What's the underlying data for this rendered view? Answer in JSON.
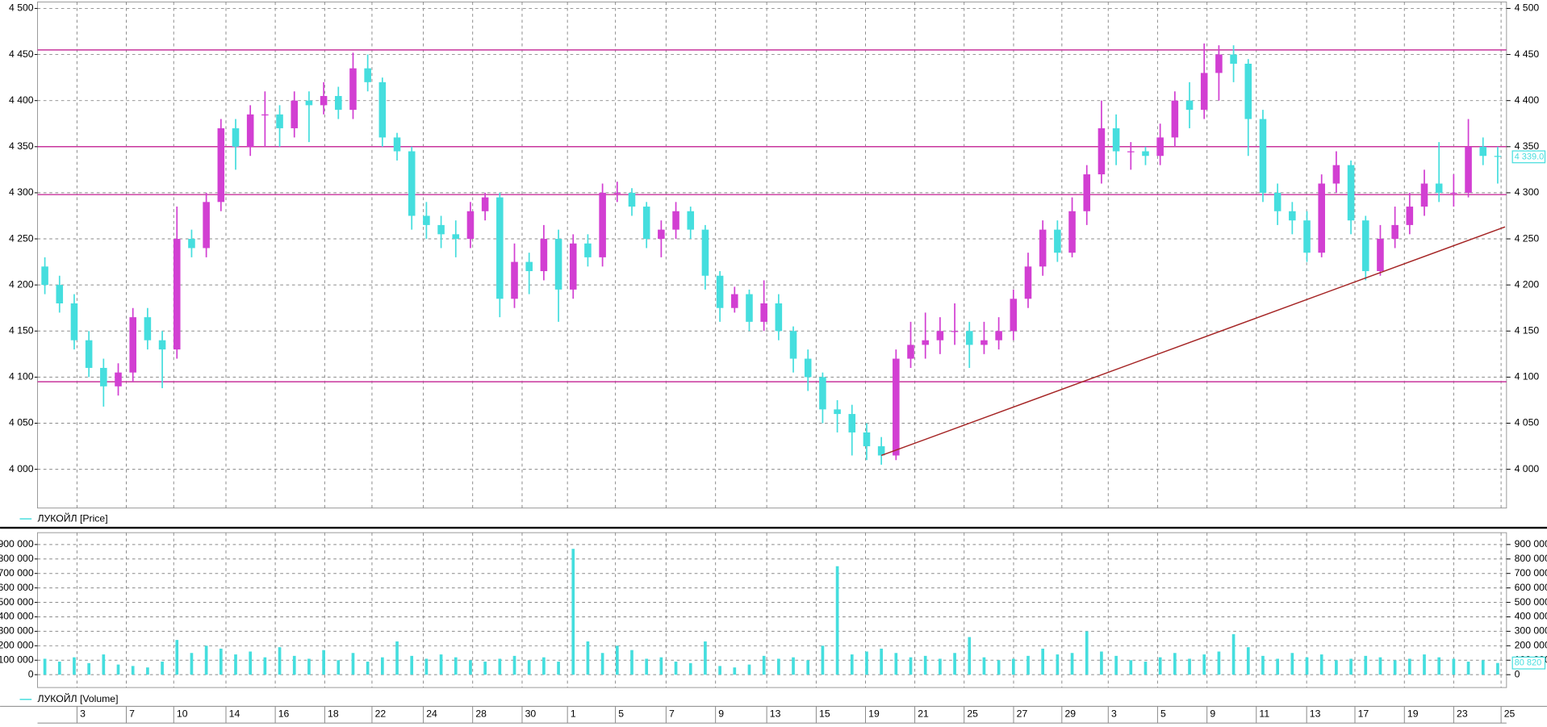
{
  "chart_data": [
    {
      "type": "candlestick",
      "name": "ЛУКОЙЛ [Price]",
      "up_color": "#d23fd2",
      "down_color": "#45dede",
      "x": [
        0,
        1,
        2,
        3,
        4,
        5,
        6,
        7,
        8,
        9,
        10,
        11,
        12,
        13,
        14,
        15,
        16,
        17,
        18,
        19,
        20,
        21,
        22,
        23,
        24,
        25,
        26,
        27,
        28,
        29,
        30,
        31,
        32,
        33,
        34,
        35,
        36,
        37,
        38,
        39,
        40,
        41,
        42,
        43,
        44,
        45,
        46,
        47,
        48,
        49,
        50,
        51,
        52,
        53,
        54,
        55,
        56,
        57,
        58,
        59,
        60,
        61,
        62,
        63,
        64,
        65,
        66,
        67,
        68,
        69,
        70,
        71,
        72,
        73,
        74,
        75,
        76,
        77,
        78,
        79,
        80,
        81,
        82,
        83,
        84,
        85,
        86,
        87,
        88,
        89,
        90,
        91,
        92,
        93,
        94,
        95,
        96,
        97,
        98,
        99
      ],
      "open": [
        4220,
        4200,
        4180,
        4140,
        4110,
        4090,
        4105,
        4165,
        4140,
        4130,
        4250,
        4240,
        4290,
        4370,
        4350,
        4385,
        4385,
        4370,
        4400,
        4395,
        4405,
        4390,
        4435,
        4420,
        4360,
        4345,
        4275,
        4265,
        4255,
        4250,
        4280,
        4295,
        4185,
        4225,
        4215,
        4250,
        4195,
        4245,
        4230,
        4300,
        4300,
        4285,
        4250,
        4260,
        4280,
        4260,
        4210,
        4175,
        4190,
        4160,
        4180,
        4150,
        4120,
        4100,
        4065,
        4060,
        4040,
        4025,
        4015,
        4120,
        4135,
        4140,
        4150,
        4150,
        4135,
        4140,
        4150,
        4185,
        4220,
        4260,
        4235,
        4280,
        4320,
        4370,
        4345,
        4345,
        4340,
        4360,
        4400,
        4390,
        4430,
        4450,
        4440,
        4380,
        4300,
        4280,
        4270,
        4235,
        4310,
        4330,
        4270,
        4215,
        4250,
        4265,
        4285,
        4310,
        4300,
        4300,
        4350,
        4340
      ],
      "high": [
        4230,
        4210,
        4190,
        4150,
        4120,
        4115,
        4175,
        4175,
        4150,
        4285,
        4260,
        4300,
        4380,
        4380,
        4395,
        4410,
        4395,
        4410,
        4410,
        4420,
        4415,
        4452,
        4450,
        4425,
        4365,
        4350,
        4290,
        4275,
        4270,
        4290,
        4300,
        4300,
        4245,
        4235,
        4265,
        4260,
        4255,
        4255,
        4310,
        4312,
        4305,
        4290,
        4270,
        4290,
        4285,
        4265,
        4215,
        4198,
        4195,
        4205,
        4190,
        4155,
        4130,
        4105,
        4075,
        4070,
        4050,
        4035,
        4130,
        4160,
        4170,
        4165,
        4180,
        4160,
        4160,
        4165,
        4195,
        4235,
        4270,
        4270,
        4295,
        4330,
        4400,
        4385,
        4355,
        4350,
        4375,
        4410,
        4420,
        4462,
        4460,
        4460,
        4445,
        4390,
        4310,
        4290,
        4280,
        4320,
        4345,
        4335,
        4275,
        4265,
        4285,
        4300,
        4325,
        4355,
        4320,
        4380,
        4360,
        4350
      ],
      "low": [
        4190,
        4170,
        4130,
        4100,
        4068,
        4080,
        4095,
        4130,
        4088,
        4120,
        4230,
        4230,
        4280,
        4325,
        4340,
        4350,
        4350,
        4360,
        4355,
        4385,
        4380,
        4380,
        4410,
        4350,
        4335,
        4260,
        4250,
        4240,
        4230,
        4240,
        4270,
        4165,
        4175,
        4190,
        4205,
        4160,
        4185,
        4220,
        4220,
        4290,
        4275,
        4240,
        4230,
        4250,
        4250,
        4195,
        4160,
        4170,
        4150,
        4150,
        4140,
        4105,
        4085,
        4050,
        4040,
        4015,
        4010,
        4005,
        4010,
        4110,
        4120,
        4125,
        4135,
        4110,
        4125,
        4130,
        4140,
        4175,
        4210,
        4225,
        4230,
        4265,
        4310,
        4330,
        4325,
        4330,
        4330,
        4350,
        4370,
        4380,
        4400,
        4420,
        4340,
        4290,
        4265,
        4255,
        4225,
        4230,
        4300,
        4255,
        4205,
        4210,
        4240,
        4255,
        4275,
        4290,
        4285,
        4295,
        4330,
        4310
      ],
      "close": [
        4200,
        4180,
        4140,
        4110,
        4090,
        4105,
        4165,
        4140,
        4130,
        4250,
        4240,
        4290,
        4370,
        4350,
        4385,
        4385,
        4370,
        4400,
        4395,
        4405,
        4390,
        4435,
        4420,
        4360,
        4345,
        4275,
        4265,
        4255,
        4250,
        4280,
        4295,
        4185,
        4225,
        4215,
        4250,
        4195,
        4245,
        4230,
        4300,
        4300,
        4285,
        4250,
        4260,
        4280,
        4260,
        4210,
        4175,
        4190,
        4160,
        4180,
        4150,
        4120,
        4100,
        4065,
        4060,
        4040,
        4025,
        4015,
        4120,
        4135,
        4140,
        4150,
        4150,
        4135,
        4140,
        4150,
        4185,
        4220,
        4260,
        4235,
        4280,
        4320,
        4370,
        4345,
        4345,
        4340,
        4360,
        4400,
        4390,
        4430,
        4450,
        4440,
        4380,
        4300,
        4280,
        4270,
        4235,
        4310,
        4330,
        4270,
        4215,
        4250,
        4265,
        4285,
        4310,
        4300,
        4300,
        4350,
        4340,
        4339
      ],
      "xlim": [
        -0.5,
        99.6
      ],
      "ylim": [
        3958,
        4507
      ],
      "yticks": [
        {
          "value": 4000,
          "label": "4 000"
        },
        {
          "value": 4050,
          "label": "4 050"
        },
        {
          "value": 4100,
          "label": "4 100"
        },
        {
          "value": 4150,
          "label": "4 150"
        },
        {
          "value": 4200,
          "label": "4 200"
        },
        {
          "value": 4250,
          "label": "4 250"
        },
        {
          "value": 4300,
          "label": "4 300"
        },
        {
          "value": 4350,
          "label": "4 350"
        },
        {
          "value": 4400,
          "label": "4 400"
        },
        {
          "value": 4450,
          "label": "4 450"
        },
        {
          "value": 4500,
          "label": "4 500"
        }
      ],
      "grid": true,
      "levels": [
        4455,
        4350,
        4298,
        4095
      ],
      "level_color": "#c8359c",
      "trend": {
        "x": [
          57,
          99.5
        ],
        "y": [
          4015,
          4263
        ],
        "color": "#a52525"
      },
      "last_value": {
        "value": 4339,
        "label": "4 339.0"
      }
    },
    {
      "type": "bar",
      "name": "ЛУКОЙЛ [Volume]",
      "color": "#45dede",
      "x": [
        0,
        1,
        2,
        3,
        4,
        5,
        6,
        7,
        8,
        9,
        10,
        11,
        12,
        13,
        14,
        15,
        16,
        17,
        18,
        19,
        20,
        21,
        22,
        23,
        24,
        25,
        26,
        27,
        28,
        29,
        30,
        31,
        32,
        33,
        34,
        35,
        36,
        37,
        38,
        39,
        40,
        41,
        42,
        43,
        44,
        45,
        46,
        47,
        48,
        49,
        50,
        51,
        52,
        53,
        54,
        55,
        56,
        57,
        58,
        59,
        60,
        61,
        62,
        63,
        64,
        65,
        66,
        67,
        68,
        69,
        70,
        71,
        72,
        73,
        74,
        75,
        76,
        77,
        78,
        79,
        80,
        81,
        82,
        83,
        84,
        85,
        86,
        87,
        88,
        89,
        90,
        91,
        92,
        93,
        94,
        95,
        96,
        97,
        98,
        99
      ],
      "values": [
        110000,
        90000,
        120000,
        80000,
        140000,
        70000,
        60000,
        50000,
        90000,
        240000,
        150000,
        200000,
        180000,
        140000,
        160000,
        120000,
        190000,
        130000,
        110000,
        170000,
        100000,
        150000,
        90000,
        120000,
        230000,
        130000,
        110000,
        140000,
        120000,
        100000,
        90000,
        110000,
        130000,
        100000,
        120000,
        90000,
        870000,
        230000,
        150000,
        200000,
        170000,
        110000,
        120000,
        90000,
        80000,
        230000,
        60000,
        50000,
        70000,
        130000,
        110000,
        120000,
        100000,
        200000,
        750000,
        140000,
        160000,
        180000,
        150000,
        120000,
        130000,
        110000,
        150000,
        260000,
        120000,
        100000,
        110000,
        130000,
        180000,
        140000,
        150000,
        300000,
        160000,
        130000,
        100000,
        90000,
        120000,
        150000,
        110000,
        140000,
        160000,
        280000,
        190000,
        130000,
        110000,
        150000,
        120000,
        140000,
        100000,
        110000,
        130000,
        120000,
        100000,
        110000,
        140000,
        120000,
        110000,
        90000,
        100000,
        80820
      ],
      "xlim": [
        -0.5,
        99.6
      ],
      "ylim": [
        -89000,
        982000
      ],
      "yticks": [
        0,
        {
          "value": 100000,
          "label": "100 000"
        },
        {
          "value": 200000,
          "label": "200 000"
        },
        {
          "value": 300000,
          "label": "300 000"
        },
        {
          "value": 400000,
          "label": "400 000"
        },
        {
          "value": 500000,
          "label": "500 000"
        },
        {
          "value": 600000,
          "label": "600 000"
        },
        {
          "value": 700000,
          "label": "700 000"
        },
        {
          "value": 800000,
          "label": "800 000"
        },
        {
          "value": 900000,
          "label": "900 000"
        }
      ],
      "grid": true,
      "xticks": [
        {
          "value": 2.19,
          "label": "3"
        },
        {
          "value": 5.55,
          "label": "7"
        },
        {
          "value": 8.78,
          "label": "10"
        },
        {
          "value": 12.34,
          "label": "14"
        },
        {
          "value": 15.7,
          "label": "16"
        },
        {
          "value": 19.07,
          "label": "18"
        },
        {
          "value": 22.29,
          "label": "22"
        },
        {
          "value": 25.79,
          "label": "24"
        },
        {
          "value": 29.15,
          "label": "28"
        },
        {
          "value": 32.52,
          "label": "30"
        },
        {
          "value": 35.61,
          "label": "1"
        },
        {
          "value": 38.88,
          "label": "5"
        },
        {
          "value": 42.33,
          "label": "7"
        },
        {
          "value": 45.7,
          "label": "9"
        },
        {
          "value": 49.19,
          "label": "13"
        },
        {
          "value": 52.56,
          "label": "15"
        },
        {
          "value": 55.92,
          "label": "19"
        },
        {
          "value": 59.28,
          "label": "21"
        },
        {
          "value": 62.64,
          "label": "25"
        },
        {
          "value": 66.01,
          "label": "27"
        },
        {
          "value": 69.3,
          "label": "29"
        },
        {
          "value": 72.46,
          "label": "3"
        },
        {
          "value": 75.82,
          "label": "5"
        },
        {
          "value": 79.19,
          "label": "9"
        },
        {
          "value": 82.55,
          "label": "11"
        },
        {
          "value": 85.98,
          "label": "13"
        },
        {
          "value": 89.27,
          "label": "17"
        },
        {
          "value": 92.64,
          "label": "19"
        },
        {
          "value": 96,
          "label": "23"
        },
        {
          "value": 99.23,
          "label": "25"
        }
      ],
      "last_value": {
        "value": 80820,
        "label": "80 820"
      }
    }
  ]
}
